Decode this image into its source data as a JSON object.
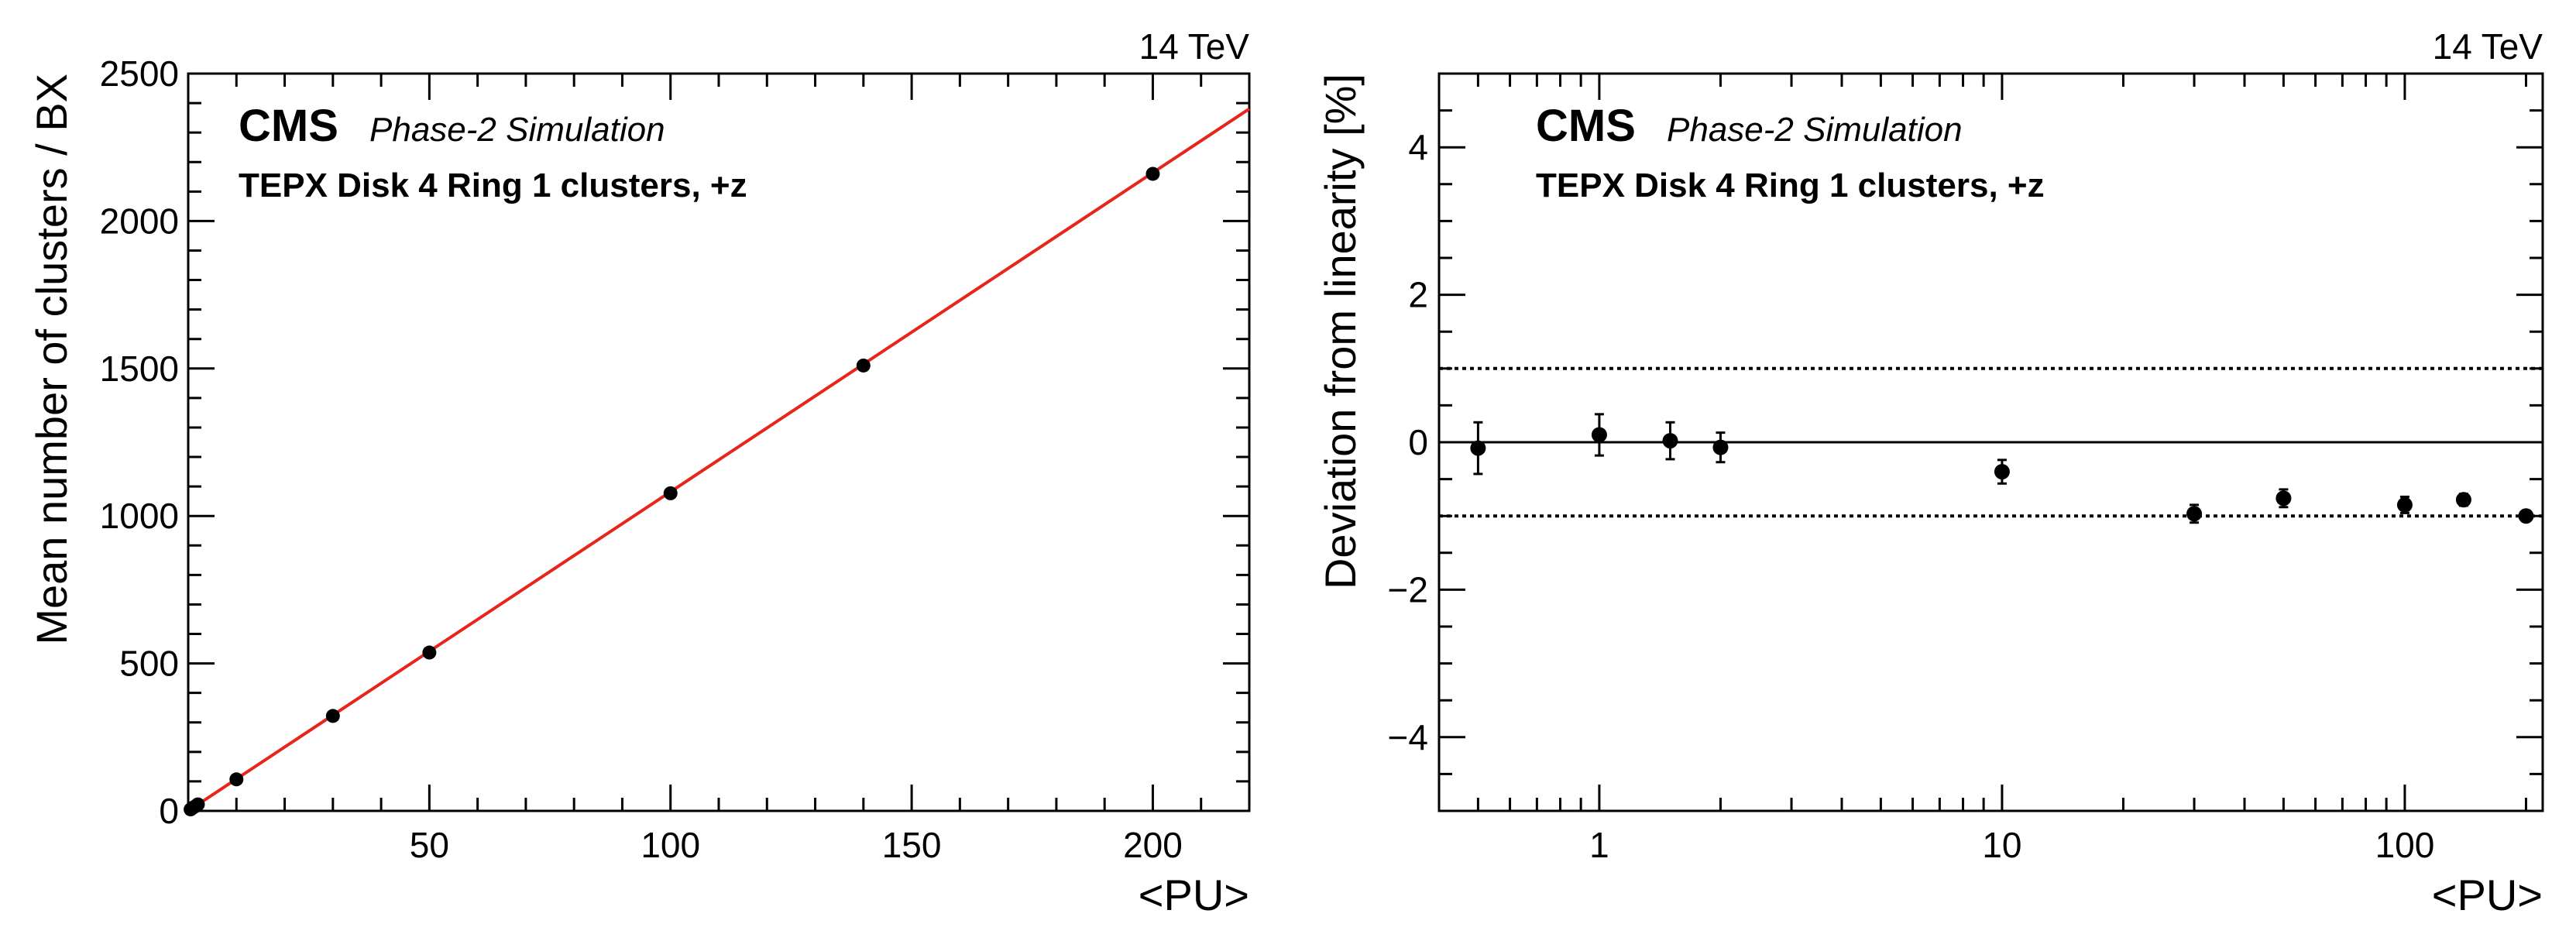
{
  "chart_data": [
    {
      "type": "scatter",
      "energy_label": "14 TeV",
      "cms_label": "CMS",
      "sim_label": "Phase-2 Simulation",
      "region_label": "TEPX Disk 4 Ring 1 clusters, +z",
      "xlabel": "<PU>",
      "ylabel": "Mean number of clusters / BX",
      "xlim": [
        0,
        220
      ],
      "ylim": [
        0,
        2500
      ],
      "xscale": "linear",
      "x_ticks": [
        50,
        100,
        150,
        200
      ],
      "y_ticks": [
        0,
        500,
        1000,
        1500,
        2000,
        2500
      ],
      "fit": {
        "type": "linear",
        "color": "#e8251a",
        "slope": 10.82,
        "intercept": 0
      },
      "series": [
        {
          "x": [
            0.5,
            1,
            1.5,
            2,
            10,
            30,
            50,
            100,
            140,
            200
          ],
          "y": [
            5,
            11,
            16,
            22,
            107,
            322,
            537,
            1077,
            1510,
            2160
          ]
        }
      ]
    },
    {
      "type": "scatter",
      "energy_label": "14 TeV",
      "cms_label": "CMS",
      "sim_label": "Phase-2 Simulation",
      "region_label": "TEPX Disk 4 Ring 1 clusters, +z",
      "xlabel": "<PU>",
      "ylabel": "Deviation from linearity [%]",
      "xlim": [
        0.4,
        220
      ],
      "ylim": [
        -5,
        5
      ],
      "xscale": "log",
      "x_ticks": [
        1,
        10,
        100
      ],
      "y_ticks": [
        -4,
        -2,
        0,
        2,
        4
      ],
      "reference_lines": {
        "solid": [
          0
        ],
        "dotted": [
          1,
          -1
        ]
      },
      "series": [
        {
          "x": [
            0.5,
            1,
            1.5,
            2,
            10,
            30,
            50,
            100,
            140,
            200
          ],
          "y": [
            -0.08,
            0.1,
            0.02,
            -0.07,
            -0.4,
            -0.97,
            -0.76,
            -0.85,
            -0.78,
            -1.0
          ],
          "err": [
            0.35,
            0.28,
            0.25,
            0.2,
            0.16,
            0.12,
            0.12,
            0.11,
            0.08,
            0.06
          ]
        }
      ]
    }
  ]
}
